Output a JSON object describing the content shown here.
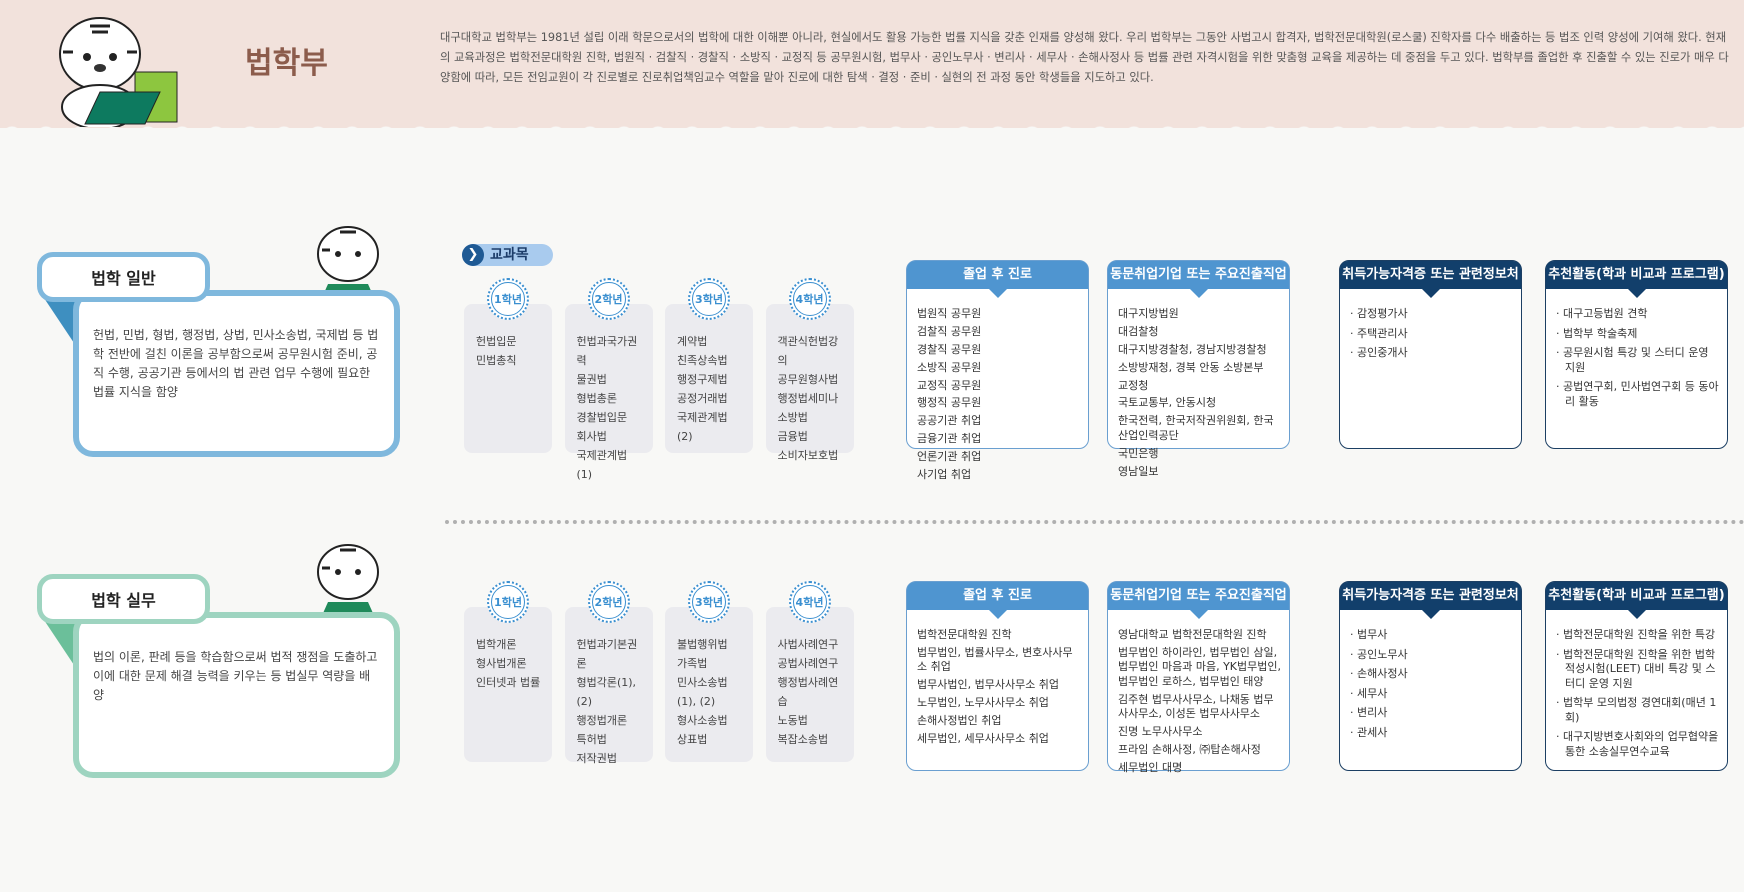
{
  "header": {
    "title": "법학부",
    "intro": "대구대학교 법학부는 1981년 설립 이래 학문으로서의 법학에 대한 이해뿐 아니라, 현실에서도 활용 가능한 법률 지식을 갖춘 인재를 양성해 왔다. 우리 법학부는 그동안 사법고시 합격자, 법학전문대학원(로스쿨) 진학자를 다수 배출하는 등 법조 인력 양성에 기여해 왔다. 현재의 교육과정은 법학전문대학원 진학, 법원직 · 검찰직 · 경찰직 · 소방직 · 교정직 등 공무원시험, 법무사 · 공인노무사 · 변리사 · 세무사 · 손해사정사 등 법률 관련 자격시험을 위한 맞춤형 교육을 제공하는 데 중점을 두고 있다. 법학부를 졸업한 후 진출할 수 있는 진로가 매우 다양함에 따라, 모든 전임교원이 각 진로별로 진로취업책임교수 역할을 맡아 진로에 대한 탐색 · 결정 · 준비 · 실현의 전 과정 동안 학생들을 지도하고 있다."
  },
  "subjects_label": "교과목",
  "colors": {
    "general": "#7fb8dd",
    "practice": "#9ed4c0",
    "career_header": "#4f95d0",
    "cert_header": "#123f6b"
  },
  "sections": [
    {
      "name": "법학 일반",
      "description": "헌법, 민법, 형법, 행정법, 상법, 민사소송법, 국제법 등 법학 전반에 걸친 이론을 공부함으로써 공무원시험 준비, 공직 수행, 공공기관 등에서의 법 관련 업무 수행에 필요한 법률 지식을 함양",
      "grades": [
        {
          "label": "1학년",
          "courses": [
            "헌법입문",
            "민법총칙"
          ]
        },
        {
          "label": "2학년",
          "courses": [
            "헌법과국가권력",
            "물권법",
            "형법총론",
            "경찰법입문",
            "회사법",
            "국제관계법(1)"
          ]
        },
        {
          "label": "3학년",
          "courses": [
            "계약법",
            "친족상속법",
            "행정구제법",
            "공정거래법",
            "국제관계법(2)"
          ]
        },
        {
          "label": "4학년",
          "courses": [
            "객관식헌법강의",
            "공무원형사법",
            "행정법세미나",
            "소방법",
            "금융법",
            "소비자보호법"
          ]
        }
      ],
      "cards": [
        {
          "title": "졸업 후 진로",
          "items": [
            "법원직 공무원",
            "검찰직 공무원",
            "경찰직 공무원",
            "소방직 공무원",
            "교정직 공무원",
            "행정직 공무원",
            "공공기관 취업",
            "금융기관 취업",
            "언론기관 취업",
            "사기업 취업"
          ]
        },
        {
          "title": "동문취업기업 또는 주요진출직업",
          "items": [
            "대구지방법원",
            "대검찰청",
            "대구지방경찰청, 경남지방경찰청",
            "소방방재청, 경북 안동 소방본부",
            "교정청",
            "국토교통부, 안동시청",
            "한국전력, 한국저작권위원회, 한국산업인력공단",
            "국민은행",
            "영남일보"
          ]
        },
        {
          "title": "취득가능자격증 또는 관련정보처",
          "items": [
            "· 감정평가사",
            "· 주택관리사",
            "· 공인중개사"
          ]
        },
        {
          "title": "추천활동(학과 비교과 프로그램)",
          "items": [
            "· 대구고등법원 견학",
            "· 법학부 학술축제",
            "· 공무원시험 특강 및 스터디 운영 지원",
            "· 공법연구회, 민사법연구회 등 동아리 활동"
          ]
        }
      ]
    },
    {
      "name": "법학 실무",
      "description": "법의 이론, 판례 등을 학습함으로써 법적 쟁점을 도출하고 이에 대한 문제 해결 능력을 키우는 등 법실무 역량을 배양",
      "grades": [
        {
          "label": "1학년",
          "courses": [
            "법학개론",
            "형사법개론",
            "인터넷과 법률"
          ]
        },
        {
          "label": "2학년",
          "courses": [
            "헌법과기본권론",
            "형법각론(1), (2)",
            "행정법개론",
            "특허법",
            "저작권법"
          ]
        },
        {
          "label": "3학년",
          "courses": [
            "불법행위법",
            "가족법",
            "민사소송법(1), (2)",
            "형사소송법",
            "상표법"
          ]
        },
        {
          "label": "4학년",
          "courses": [
            "사법사례연구",
            "공법사례연구",
            "행정법사례연습",
            "노동법",
            "복잡소송법"
          ]
        }
      ],
      "cards": [
        {
          "title": "졸업 후 진로",
          "items": [
            "법학전문대학원 진학",
            "법무법인, 법률사무소, 변호사사무소 취업",
            "법무사법인, 법무사사무소 취업",
            "노무법인, 노무사사무소 취업",
            "손해사정법인 취업",
            "세무법인, 세무사사무소 취업"
          ]
        },
        {
          "title": "동문취업기업 또는 주요진출직업",
          "items": [
            "영남대학교 법학전문대학원 진학",
            "법무법인 하이라인, 법무법인 삼일, 법무법인 마음과 마음, YK법무법인, 법무법인 로하스, 법무법인 태양",
            "김주현 법무사사무소, 나채동 법무사사무소, 이성돈 법무사사무소",
            "진명 노무사사무소",
            "프라임 손해사정, ㈜탑손해사정",
            "세무법인 대명"
          ]
        },
        {
          "title": "취득가능자격증 또는 관련정보처",
          "items": [
            "· 법무사",
            "· 공인노무사",
            "· 손해사정사",
            "· 세무사",
            "· 변리사",
            "· 관세사"
          ]
        },
        {
          "title": "추천활동(학과 비교과 프로그램)",
          "items": [
            "· 법학전문대학원 진학을 위한 특강",
            "· 법학전문대학원 진학을 위한 법학적성시험(LEET) 대비 특강 및 스터디 운영 지원",
            "· 법학부 모의법정 경연대회(매년 1회)",
            "· 대구지방변호사회와의 업무협약을 통한 소송실무연수교육"
          ]
        }
      ]
    }
  ]
}
